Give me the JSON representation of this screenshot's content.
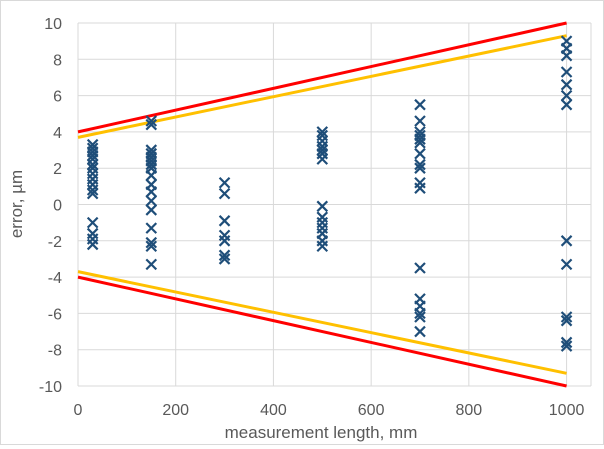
{
  "chart_data": {
    "type": "scatter",
    "title": "",
    "xlabel": "measurement length, mm",
    "ylabel": "error, µm",
    "xlim": [
      0,
      1050
    ],
    "ylim": [
      -10,
      10
    ],
    "xticks": [
      0,
      200,
      400,
      600,
      800,
      1000
    ],
    "yticks": [
      -10,
      -8,
      -6,
      -4,
      -2,
      0,
      2,
      4,
      6,
      8,
      10
    ],
    "grid": true,
    "legend": "none",
    "marker": "x",
    "colors": {
      "points": "#1f4e79",
      "outer_limit": "#ff0000",
      "inner_limit": "#ffc000",
      "grid": "#d9d9d9",
      "text": "#595959"
    },
    "points": [
      [
        30,
        3.3
      ],
      [
        30,
        3.1
      ],
      [
        30,
        2.9
      ],
      [
        30,
        2.7
      ],
      [
        30,
        2.5
      ],
      [
        30,
        2.2
      ],
      [
        30,
        2.0
      ],
      [
        30,
        1.7
      ],
      [
        30,
        1.4
      ],
      [
        30,
        1.1
      ],
      [
        30,
        0.8
      ],
      [
        30,
        0.6
      ],
      [
        30,
        -1.0
      ],
      [
        30,
        -1.6
      ],
      [
        30,
        -1.9
      ],
      [
        30,
        -2.2
      ],
      [
        150,
        4.6
      ],
      [
        150,
        4.4
      ],
      [
        150,
        3.0
      ],
      [
        150,
        2.8
      ],
      [
        150,
        2.6
      ],
      [
        150,
        2.4
      ],
      [
        150,
        2.2
      ],
      [
        150,
        2.0
      ],
      [
        150,
        1.6
      ],
      [
        150,
        1.1
      ],
      [
        150,
        0.7
      ],
      [
        150,
        0.2
      ],
      [
        150,
        -0.3
      ],
      [
        150,
        -1.3
      ],
      [
        150,
        -2.1
      ],
      [
        150,
        -2.3
      ],
      [
        150,
        -3.3
      ],
      [
        300,
        1.2
      ],
      [
        300,
        0.6
      ],
      [
        300,
        -0.9
      ],
      [
        300,
        -1.7
      ],
      [
        300,
        -2.0
      ],
      [
        300,
        -2.8
      ],
      [
        300,
        -3.0
      ],
      [
        500,
        4.0
      ],
      [
        500,
        3.8
      ],
      [
        500,
        3.5
      ],
      [
        500,
        3.2
      ],
      [
        500,
        3.0
      ],
      [
        500,
        2.8
      ],
      [
        500,
        2.5
      ],
      [
        500,
        -0.1
      ],
      [
        500,
        -0.7
      ],
      [
        500,
        -1.0
      ],
      [
        500,
        -1.3
      ],
      [
        500,
        -1.6
      ],
      [
        500,
        -2.0
      ],
      [
        500,
        -2.3
      ],
      [
        700,
        5.5
      ],
      [
        700,
        4.6
      ],
      [
        700,
        4.0
      ],
      [
        700,
        3.8
      ],
      [
        700,
        3.6
      ],
      [
        700,
        3.4
      ],
      [
        700,
        2.8
      ],
      [
        700,
        2.2
      ],
      [
        700,
        2.0
      ],
      [
        700,
        1.2
      ],
      [
        700,
        0.9
      ],
      [
        700,
        -3.5
      ],
      [
        700,
        -5.2
      ],
      [
        700,
        -5.6
      ],
      [
        700,
        -6.0
      ],
      [
        700,
        -6.2
      ],
      [
        700,
        -7.0
      ],
      [
        1000,
        9.0
      ],
      [
        1000,
        8.6
      ],
      [
        1000,
        8.2
      ],
      [
        1000,
        7.3
      ],
      [
        1000,
        6.6
      ],
      [
        1000,
        6.0
      ],
      [
        1000,
        5.5
      ],
      [
        1000,
        -2.0
      ],
      [
        1000,
        -3.3
      ],
      [
        1000,
        -6.2
      ],
      [
        1000,
        -6.4
      ],
      [
        1000,
        -7.6
      ],
      [
        1000,
        -7.8
      ]
    ],
    "limit_lines": [
      {
        "name": "",
        "color": "#ff0000",
        "x": [
          0,
          1000
        ],
        "upper": [
          4.0,
          10.0
        ],
        "lower": [
          -4.0,
          -10.0
        ]
      },
      {
        "name": "",
        "color": "#ffc000",
        "x": [
          0,
          1000
        ],
        "upper": [
          3.7,
          9.3
        ],
        "lower": [
          -3.7,
          -9.3
        ]
      }
    ]
  }
}
